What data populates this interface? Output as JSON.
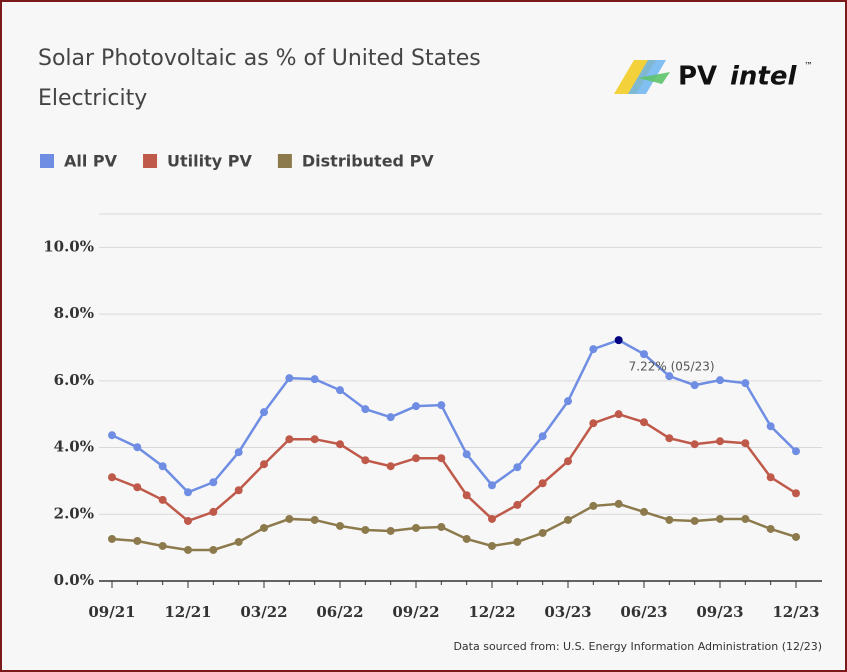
{
  "chart_data": {
    "type": "line",
    "title": "Solar Photovoltaic as % of United States Electricity",
    "logo": {
      "brand": "PV",
      "product": "intel",
      "mark": "™"
    },
    "source": "Data sourced from: U.S. Energy Information Administration (12/23)",
    "annotation": {
      "text": "7.22% (05/23)",
      "series": 0,
      "index": 20,
      "color": "#000080"
    },
    "categories": [
      "09/21",
      null,
      null,
      "12/21",
      null,
      null,
      "03/22",
      null,
      null,
      "06/22",
      null,
      null,
      "09/22",
      null,
      null,
      "12/22",
      null,
      null,
      "03/23",
      null,
      null,
      "06/23",
      null,
      null,
      "09/23",
      null,
      null,
      "12/23"
    ],
    "series": [
      {
        "name": "All PV",
        "color": "#6f8ee3",
        "values": [
          4.37,
          4.01,
          3.44,
          2.66,
          2.96,
          3.86,
          5.06,
          6.08,
          6.05,
          5.72,
          5.15,
          4.91,
          5.24,
          5.27,
          3.8,
          2.87,
          3.41,
          4.34,
          5.39,
          6.95,
          7.22,
          6.8,
          6.14,
          5.87,
          6.02,
          5.93,
          4.64,
          3.89
        ]
      },
      {
        "name": "Utility PV",
        "color": "#bf5a4b",
        "values": [
          3.11,
          2.81,
          2.43,
          1.8,
          2.07,
          2.72,
          3.5,
          4.25,
          4.25,
          4.1,
          3.62,
          3.44,
          3.68,
          3.68,
          2.57,
          1.86,
          2.28,
          2.93,
          3.59,
          4.73,
          5.0,
          4.76,
          4.28,
          4.1,
          4.19,
          4.13,
          3.11,
          2.63
        ]
      },
      {
        "name": "Distributed PV",
        "color": "#8c7a4c",
        "values": [
          1.26,
          1.2,
          1.05,
          0.93,
          0.93,
          1.17,
          1.59,
          1.86,
          1.83,
          1.65,
          1.53,
          1.5,
          1.59,
          1.62,
          1.26,
          1.05,
          1.17,
          1.44,
          1.83,
          2.25,
          2.31,
          2.07,
          1.83,
          1.8,
          1.86,
          1.86,
          1.56,
          1.32
        ]
      }
    ],
    "ylim": [
      0,
      11
    ],
    "yticks": [
      {
        "value": 0,
        "label": "0.0%"
      },
      {
        "value": 2,
        "label": "2.0%"
      },
      {
        "value": 4,
        "label": "4.0%"
      },
      {
        "value": 6,
        "label": "6.0%"
      },
      {
        "value": 8,
        "label": "8.0%"
      },
      {
        "value": 10,
        "label": "10.0%"
      },
      {
        "value": 11,
        "label": ""
      }
    ],
    "grid": true
  }
}
